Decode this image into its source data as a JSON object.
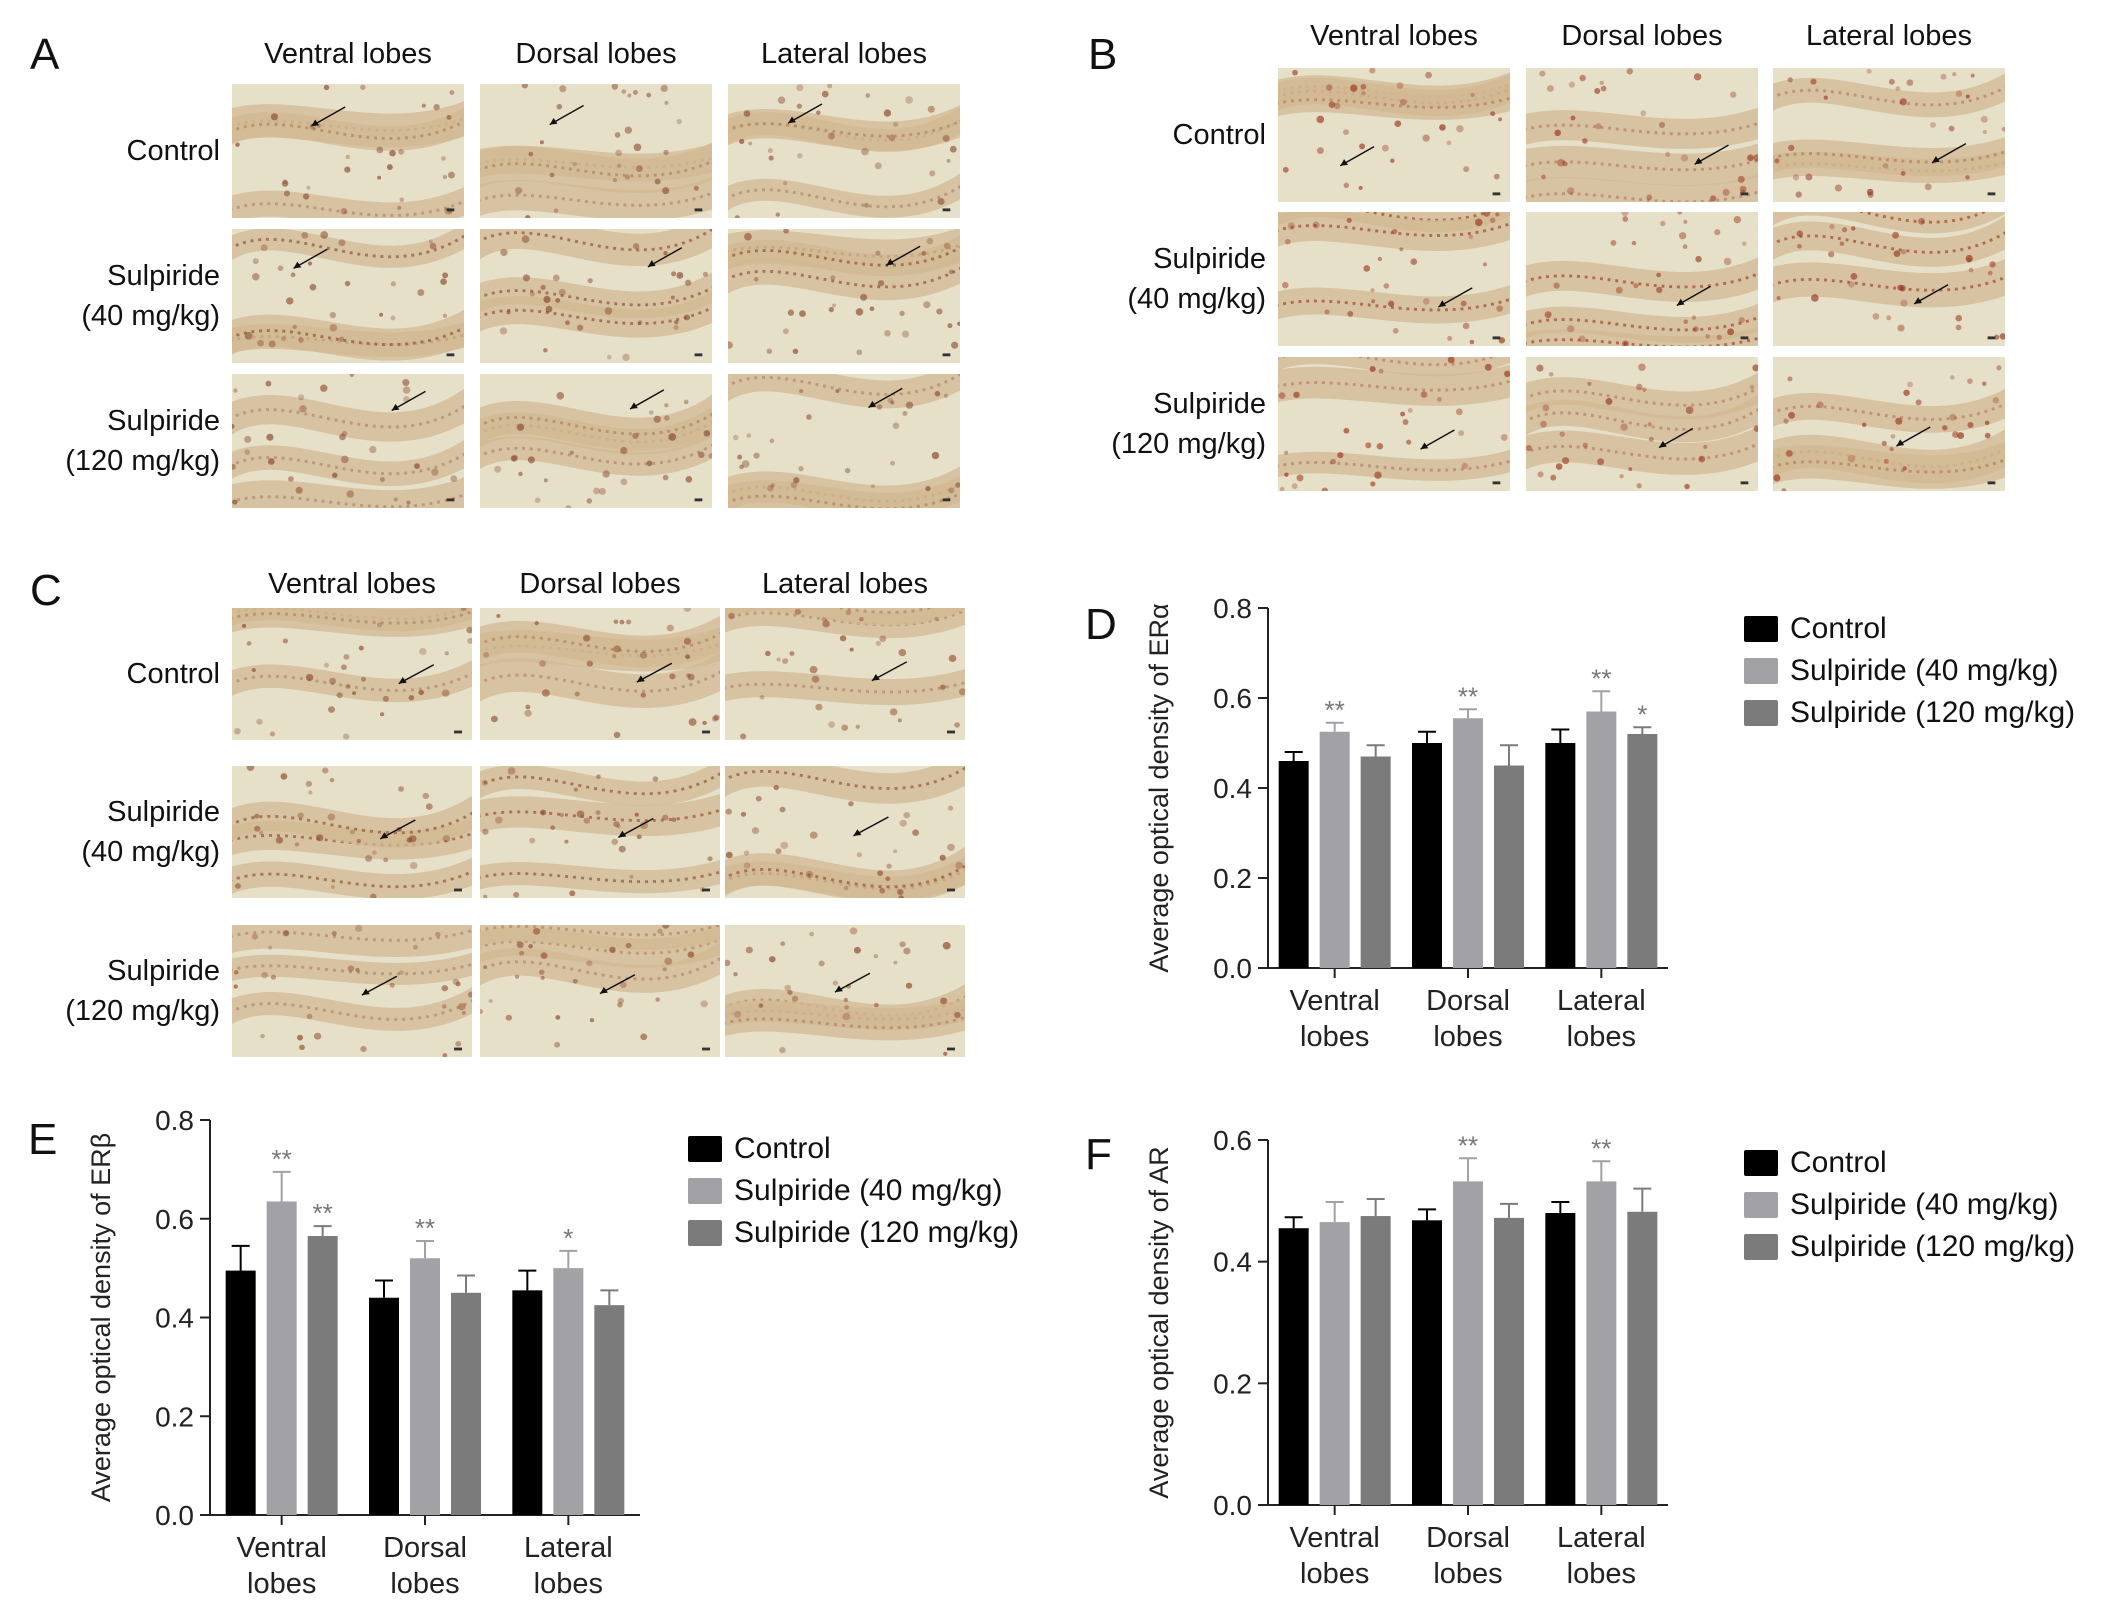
{
  "micro_panels": [
    {
      "letter": "A",
      "columns": [
        "Ventral lobes",
        "Dorsal lobes",
        "Lateral lobes"
      ],
      "rows": [
        [
          "Control"
        ],
        [
          "Sulpiride",
          "(40 mg/kg)"
        ],
        [
          "Sulpiride",
          "(120 mg/kg)"
        ]
      ],
      "stain": "#8a4a2e"
    },
    {
      "letter": "B",
      "columns": [
        "Ventral lobes",
        "Dorsal lobes",
        "Lateral lobes"
      ],
      "rows": [
        [
          "Control"
        ],
        [
          "Sulpiride",
          "(40 mg/kg)"
        ],
        [
          "Sulpiride",
          "(120 mg/kg)"
        ]
      ],
      "stain": "#9b3a22"
    },
    {
      "letter": "C",
      "columns": [
        "Ventral lobes",
        "Dorsal lobes",
        "Lateral lobes"
      ],
      "rows": [
        [
          "Control"
        ],
        [
          "Sulpiride",
          "(40 mg/kg)"
        ],
        [
          "Sulpiride",
          "(120 mg/kg)"
        ]
      ],
      "stain": "#8e4b2c"
    }
  ],
  "legend": [
    {
      "label": "Control",
      "color": "#000000"
    },
    {
      "label": "Sulpiride (40 mg/kg)",
      "color": "#a1a1a6"
    },
    {
      "label": "Sulpiride (120 mg/kg)",
      "color": "#7b7b7b"
    }
  ],
  "chart_data": [
    {
      "letter": "D",
      "type": "bar",
      "ylabel": "Average optical density of ERα",
      "ylim": [
        0,
        0.8
      ],
      "yticks": [
        "0.0",
        "0.2",
        "0.4",
        "0.6",
        "0.8"
      ],
      "categories": [
        [
          "Ventral",
          "lobes"
        ],
        [
          "Dorsal",
          "lobes"
        ],
        [
          "Lateral",
          "lobes"
        ]
      ],
      "series": [
        {
          "name": "Control",
          "color": "#000000",
          "values": [
            0.46,
            0.5,
            0.5
          ],
          "errors": [
            0.02,
            0.025,
            0.03
          ],
          "sig": [
            "",
            "",
            ""
          ]
        },
        {
          "name": "Sulpiride (40 mg/kg)",
          "color": "#a1a1a6",
          "values": [
            0.525,
            0.555,
            0.57
          ],
          "errors": [
            0.02,
            0.02,
            0.045
          ],
          "sig": [
            "**",
            "**",
            "**"
          ]
        },
        {
          "name": "Sulpiride (120 mg/kg)",
          "color": "#7b7b7b",
          "values": [
            0.47,
            0.45,
            0.52
          ],
          "errors": [
            0.025,
            0.045,
            0.015
          ],
          "sig": [
            "",
            "",
            "*"
          ]
        }
      ]
    },
    {
      "letter": "E",
      "type": "bar",
      "ylabel": "Average optical density of ERβ",
      "ylim": [
        0,
        0.8
      ],
      "yticks": [
        "0.0",
        "0.2",
        "0.4",
        "0.6",
        "0.8"
      ],
      "categories": [
        [
          "Ventral",
          "lobes"
        ],
        [
          "Dorsal",
          "lobes"
        ],
        [
          "Lateral",
          "lobes"
        ]
      ],
      "series": [
        {
          "name": "Control",
          "color": "#000000",
          "values": [
            0.495,
            0.44,
            0.455
          ],
          "errors": [
            0.05,
            0.035,
            0.04
          ],
          "sig": [
            "",
            "",
            ""
          ]
        },
        {
          "name": "Sulpiride (40 mg/kg)",
          "color": "#a1a1a6",
          "values": [
            0.635,
            0.52,
            0.5
          ],
          "errors": [
            0.06,
            0.035,
            0.035
          ],
          "sig": [
            "**",
            "**",
            "*"
          ]
        },
        {
          "name": "Sulpiride (120 mg/kg)",
          "color": "#7b7b7b",
          "values": [
            0.565,
            0.45,
            0.425
          ],
          "errors": [
            0.02,
            0.035,
            0.03
          ],
          "sig": [
            "**",
            "",
            ""
          ]
        }
      ]
    },
    {
      "letter": "F",
      "type": "bar",
      "ylabel": "Average optical density of AR",
      "ylim": [
        0,
        0.6
      ],
      "yticks": [
        "0.0",
        "0.2",
        "0.4",
        "0.6"
      ],
      "categories": [
        [
          "Ventral",
          "lobes"
        ],
        [
          "Dorsal",
          "lobes"
        ],
        [
          "Lateral",
          "lobes"
        ]
      ],
      "series": [
        {
          "name": "Control",
          "color": "#000000",
          "values": [
            0.455,
            0.468,
            0.48
          ],
          "errors": [
            0.018,
            0.018,
            0.018
          ],
          "sig": [
            "",
            "",
            ""
          ]
        },
        {
          "name": "Sulpiride (40 mg/kg)",
          "color": "#a1a1a6",
          "values": [
            0.465,
            0.532,
            0.532
          ],
          "errors": [
            0.033,
            0.038,
            0.033
          ],
          "sig": [
            "",
            "**",
            "**"
          ]
        },
        {
          "name": "Sulpiride (120 mg/kg)",
          "color": "#7b7b7b",
          "values": [
            0.475,
            0.472,
            0.482
          ],
          "errors": [
            0.028,
            0.023,
            0.038
          ],
          "sig": [
            "",
            "",
            ""
          ]
        }
      ]
    }
  ]
}
